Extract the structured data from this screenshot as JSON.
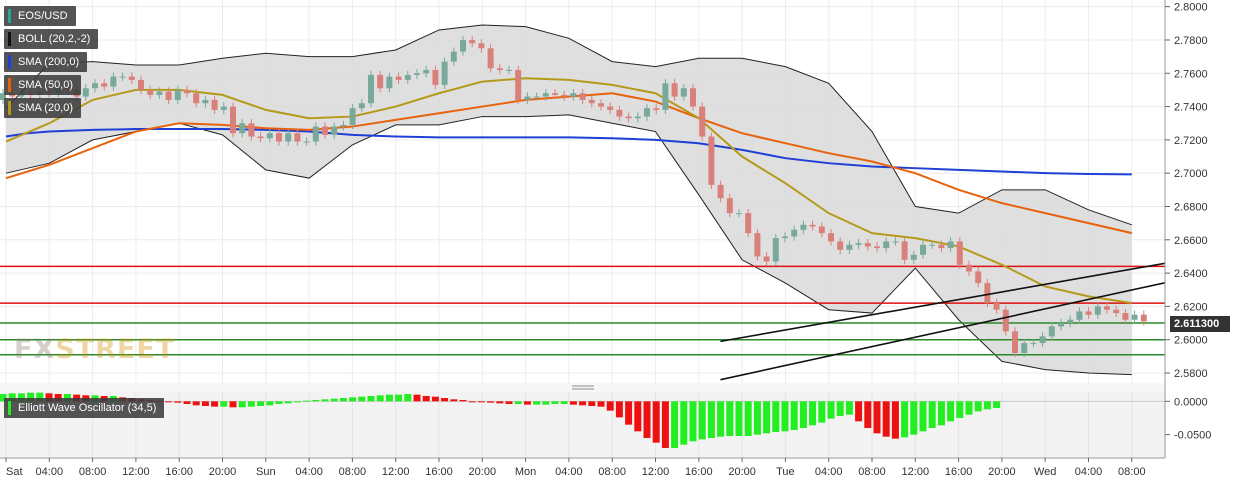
{
  "legend": [
    {
      "label": "EOS/USD",
      "color": "#26a69a"
    },
    {
      "label": "BOLL (20,2,-2)",
      "color": "#111111"
    },
    {
      "label": "SMA (200,0)",
      "color": "#1f3fd6"
    },
    {
      "label": "SMA (50,0)",
      "color": "#e8620c"
    },
    {
      "label": "SMA (20,0)",
      "color": "#b59a1a"
    }
  ],
  "oscillator_label": "Elliott Wave Oscillator (34,5)",
  "last_price": "2.611300",
  "watermark": {
    "fx": "FX",
    "street": "STREET"
  },
  "colors": {
    "up": "#78a99a",
    "down": "#d9807a",
    "osc_up": "#22ee22",
    "osc_down": "#ee1111",
    "band_fill": "#d9d9d9",
    "hline_red": "#dd1111",
    "hline_green": "#2a8a2a"
  },
  "chart_data": {
    "type": "candlestick",
    "pair": "EOS/USD",
    "price_axis": {
      "ticks": [
        "2.8000",
        "2.7800",
        "2.7600",
        "2.7400",
        "2.7200",
        "2.7000",
        "2.6800",
        "2.6600",
        "2.6400",
        "2.6200",
        "2.6000",
        "2.5800"
      ],
      "ylim": [
        2.574,
        2.804
      ]
    },
    "oscillator_axis": {
      "ticks": [
        "0.0000",
        "-0.0500"
      ],
      "ylim": [
        -0.085,
        0.014
      ]
    },
    "time_ticks": [
      "Sat",
      "04:00",
      "08:00",
      "12:00",
      "16:00",
      "20:00",
      "Sun",
      "04:00",
      "08:00",
      "12:00",
      "16:00",
      "20:00",
      "Mon",
      "04:00",
      "08:00",
      "12:00",
      "16:00",
      "20:00",
      "Tue",
      "04:00",
      "08:00",
      "12:00",
      "16:00",
      "20:00",
      "Wed",
      "04:00",
      "08:00"
    ],
    "horizontal_levels": [
      {
        "value": 2.644,
        "color": "red"
      },
      {
        "value": 2.622,
        "color": "red"
      },
      {
        "value": 2.61,
        "color": "green"
      },
      {
        "value": 2.6,
        "color": "green"
      },
      {
        "value": 2.591,
        "color": "green"
      }
    ],
    "channel": [
      {
        "from": [
          16.5,
          2.576
        ],
        "to": [
          29.2,
          2.648
        ]
      },
      {
        "from": [
          16.5,
          2.599
        ],
        "to": [
          29.2,
          2.657
        ]
      }
    ],
    "candles_open": [
      2.744,
      2.748,
      2.746,
      2.748,
      2.747,
      2.749,
      2.748,
      2.752,
      2.75,
      2.746,
      2.751,
      2.754,
      2.752,
      2.758,
      2.758,
      2.756,
      2.75,
      2.747,
      2.749,
      2.744,
      2.75,
      2.748,
      2.742,
      2.744,
      2.738,
      2.74,
      2.724,
      2.73,
      2.722,
      2.721,
      2.724,
      2.719,
      2.724,
      2.719,
      2.719,
      2.728,
      2.723,
      2.728,
      2.729,
      2.739,
      2.742,
      2.759,
      2.751,
      2.758,
      2.756,
      2.759,
      2.76,
      2.762,
      2.753,
      2.767,
      2.773,
      2.78,
      2.778,
      2.775,
      2.763,
      2.762,
      2.762,
      2.744,
      2.746,
      2.746,
      2.748,
      2.747,
      2.746,
      2.748,
      2.744,
      2.742,
      2.74,
      2.738,
      2.734,
      2.733,
      2.734,
      2.739,
      2.738,
      2.754,
      2.746,
      2.751,
      2.74,
      2.722,
      2.693,
      2.685,
      2.676,
      2.676,
      2.664,
      2.65,
      2.647,
      2.661,
      2.662,
      2.666,
      2.669,
      2.668,
      2.664,
      2.659,
      2.654,
      2.657,
      2.658,
      2.656,
      2.655,
      2.659,
      2.659,
      2.648,
      2.651,
      2.657,
      2.657,
      2.655,
      2.659,
      2.645,
      2.641,
      2.634,
      2.622,
      2.618,
      2.605,
      2.592,
      2.598,
      2.598,
      2.602,
      2.608,
      2.61,
      2.612,
      2.617,
      2.615,
      2.62,
      2.618,
      2.616,
      2.612,
      2.615
    ],
    "candles_close": [
      2.748,
      2.746,
      2.748,
      2.747,
      2.749,
      2.748,
      2.752,
      2.75,
      2.746,
      2.751,
      2.754,
      2.752,
      2.758,
      2.758,
      2.756,
      2.75,
      2.747,
      2.749,
      2.744,
      2.75,
      2.748,
      2.742,
      2.744,
      2.738,
      2.74,
      2.724,
      2.73,
      2.722,
      2.721,
      2.724,
      2.719,
      2.724,
      2.719,
      2.719,
      2.728,
      2.723,
      2.728,
      2.729,
      2.739,
      2.742,
      2.759,
      2.751,
      2.758,
      2.756,
      2.759,
      2.76,
      2.762,
      2.753,
      2.767,
      2.773,
      2.78,
      2.778,
      2.775,
      2.763,
      2.762,
      2.762,
      2.744,
      2.746,
      2.746,
      2.748,
      2.747,
      2.746,
      2.748,
      2.744,
      2.742,
      2.74,
      2.738,
      2.734,
      2.733,
      2.734,
      2.739,
      2.738,
      2.754,
      2.746,
      2.751,
      2.74,
      2.722,
      2.693,
      2.685,
      2.676,
      2.676,
      2.664,
      2.65,
      2.647,
      2.661,
      2.662,
      2.666,
      2.669,
      2.668,
      2.664,
      2.659,
      2.654,
      2.657,
      2.658,
      2.656,
      2.655,
      2.659,
      2.659,
      2.648,
      2.651,
      2.657,
      2.657,
      2.655,
      2.659,
      2.645,
      2.641,
      2.634,
      2.622,
      2.618,
      2.605,
      2.592,
      2.598,
      2.598,
      2.602,
      2.608,
      2.61,
      2.612,
      2.617,
      2.615,
      2.62,
      2.618,
      2.616,
      2.612,
      2.615,
      2.611
    ],
    "sma200": [
      [
        0,
        2.722
      ],
      [
        0.5,
        2.724
      ],
      [
        1,
        2.725
      ],
      [
        2,
        2.726
      ],
      [
        3,
        2.7265
      ],
      [
        4,
        2.7265
      ],
      [
        5,
        2.7265
      ],
      [
        6,
        2.726
      ],
      [
        7,
        2.725
      ],
      [
        8,
        2.723
      ],
      [
        9,
        2.722
      ],
      [
        10,
        2.7215
      ],
      [
        11,
        2.7215
      ],
      [
        12,
        2.7215
      ],
      [
        13,
        2.7215
      ],
      [
        14,
        2.721
      ],
      [
        15,
        2.72
      ],
      [
        16,
        2.718
      ],
      [
        17,
        2.714
      ],
      [
        18,
        2.709
      ],
      [
        19,
        2.706
      ],
      [
        20,
        2.704
      ],
      [
        21,
        2.703
      ],
      [
        22,
        2.702
      ],
      [
        23,
        2.701
      ],
      [
        24,
        2.7
      ],
      [
        25,
        2.6995
      ],
      [
        26,
        2.6993
      ]
    ],
    "sma50": [
      [
        0,
        2.697
      ],
      [
        1,
        2.705
      ],
      [
        2,
        2.715
      ],
      [
        3,
        2.725
      ],
      [
        4,
        2.73
      ],
      [
        5,
        2.729
      ],
      [
        6,
        2.727
      ],
      [
        7,
        2.726
      ],
      [
        8,
        2.728
      ],
      [
        9,
        2.732
      ],
      [
        10,
        2.736
      ],
      [
        11,
        2.74
      ],
      [
        12,
        2.744
      ],
      [
        13,
        2.746
      ],
      [
        14,
        2.748
      ],
      [
        15,
        2.743
      ],
      [
        16,
        2.733
      ],
      [
        17,
        2.724
      ],
      [
        18,
        2.718
      ],
      [
        19,
        2.712
      ],
      [
        20,
        2.707
      ],
      [
        21,
        2.7
      ],
      [
        22,
        2.69
      ],
      [
        23,
        2.682
      ],
      [
        24,
        2.676
      ],
      [
        25,
        2.67
      ],
      [
        26,
        2.664
      ]
    ],
    "sma20": [
      [
        0,
        2.719
      ],
      [
        1,
        2.73
      ],
      [
        2,
        2.744
      ],
      [
        3,
        2.75
      ],
      [
        4,
        2.75
      ],
      [
        5,
        2.747
      ],
      [
        6,
        2.738
      ],
      [
        7,
        2.733
      ],
      [
        8,
        2.734
      ],
      [
        9,
        2.74
      ],
      [
        10,
        2.748
      ],
      [
        11,
        2.755
      ],
      [
        12,
        2.757
      ],
      [
        13,
        2.756
      ],
      [
        14,
        2.753
      ],
      [
        15,
        2.748
      ],
      [
        16,
        2.733
      ],
      [
        17,
        2.71
      ],
      [
        18,
        2.694
      ],
      [
        19,
        2.676
      ],
      [
        20,
        2.664
      ],
      [
        21,
        2.661
      ],
      [
        22,
        2.656
      ],
      [
        23,
        2.645
      ],
      [
        24,
        2.632
      ],
      [
        25,
        2.626
      ],
      [
        26,
        2.622
      ]
    ],
    "boll_upper": [
      [
        0,
        2.739
      ],
      [
        1,
        2.766
      ],
      [
        2,
        2.767
      ],
      [
        3,
        2.765
      ],
      [
        4,
        2.765
      ],
      [
        5,
        2.769
      ],
      [
        6,
        2.772
      ],
      [
        7,
        2.77
      ],
      [
        8,
        2.77
      ],
      [
        9,
        2.774
      ],
      [
        10,
        2.786
      ],
      [
        11,
        2.789
      ],
      [
        12,
        2.788
      ],
      [
        13,
        2.781
      ],
      [
        14,
        2.767
      ],
      [
        15,
        2.764
      ],
      [
        16,
        2.769
      ],
      [
        17,
        2.769
      ],
      [
        18,
        2.764
      ],
      [
        19,
        2.754
      ],
      [
        20,
        2.725
      ],
      [
        21,
        2.68
      ],
      [
        22,
        2.676
      ],
      [
        23,
        2.69
      ],
      [
        24,
        2.69
      ],
      [
        25,
        2.678
      ],
      [
        26,
        2.669
      ]
    ],
    "boll_lower": [
      [
        0,
        2.7
      ],
      [
        1,
        2.706
      ],
      [
        2,
        2.72
      ],
      [
        3,
        2.725
      ],
      [
        4,
        2.73
      ],
      [
        5,
        2.723
      ],
      [
        6,
        2.702
      ],
      [
        7,
        2.697
      ],
      [
        8,
        2.717
      ],
      [
        9,
        2.729
      ],
      [
        10,
        2.729
      ],
      [
        11,
        2.734
      ],
      [
        12,
        2.734
      ],
      [
        13,
        2.735
      ],
      [
        14,
        2.73
      ],
      [
        15,
        2.725
      ],
      [
        16,
        2.687
      ],
      [
        17,
        2.648
      ],
      [
        18,
        2.634
      ],
      [
        19,
        2.618
      ],
      [
        20,
        2.616
      ],
      [
        21,
        2.643
      ],
      [
        22,
        2.612
      ],
      [
        23,
        2.587
      ],
      [
        24,
        2.582
      ],
      [
        25,
        2.58
      ],
      [
        26,
        2.579
      ]
    ],
    "oscillator": [
      0.011,
      0.012,
      0.012,
      0.013,
      0.013,
      0.012,
      0.011,
      0.011,
      0.01,
      0.009,
      0.009,
      0.008,
      0.008,
      0.006,
      0.005,
      0.003,
      0.002,
      0.001,
      0.0,
      -0.002,
      -0.004,
      -0.006,
      -0.007,
      -0.008,
      -0.008,
      -0.009,
      -0.009,
      -0.008,
      -0.007,
      -0.006,
      -0.004,
      -0.003,
      -0.001,
      0.001,
      0.002,
      0.003,
      0.004,
      0.005,
      0.006,
      0.007,
      0.008,
      0.009,
      0.01,
      0.01,
      0.011,
      0.01,
      0.008,
      0.007,
      0.005,
      0.003,
      0.002,
      0.0,
      -0.001,
      -0.002,
      -0.003,
      -0.004,
      -0.004,
      -0.005,
      -0.005,
      -0.005,
      -0.004,
      -0.004,
      -0.005,
      -0.006,
      -0.007,
      -0.008,
      -0.014,
      -0.024,
      -0.035,
      -0.045,
      -0.055,
      -0.062,
      -0.07,
      -0.07,
      -0.065,
      -0.06,
      -0.057,
      -0.055,
      -0.053,
      -0.052,
      -0.052,
      -0.052,
      -0.05,
      -0.048,
      -0.046,
      -0.045,
      -0.043,
      -0.04,
      -0.036,
      -0.032,
      -0.026,
      -0.022,
      -0.02,
      -0.03,
      -0.04,
      -0.048,
      -0.053,
      -0.056,
      -0.054,
      -0.05,
      -0.045,
      -0.04,
      -0.036,
      -0.03,
      -0.025,
      -0.02,
      -0.015,
      -0.012,
      -0.01
    ]
  }
}
